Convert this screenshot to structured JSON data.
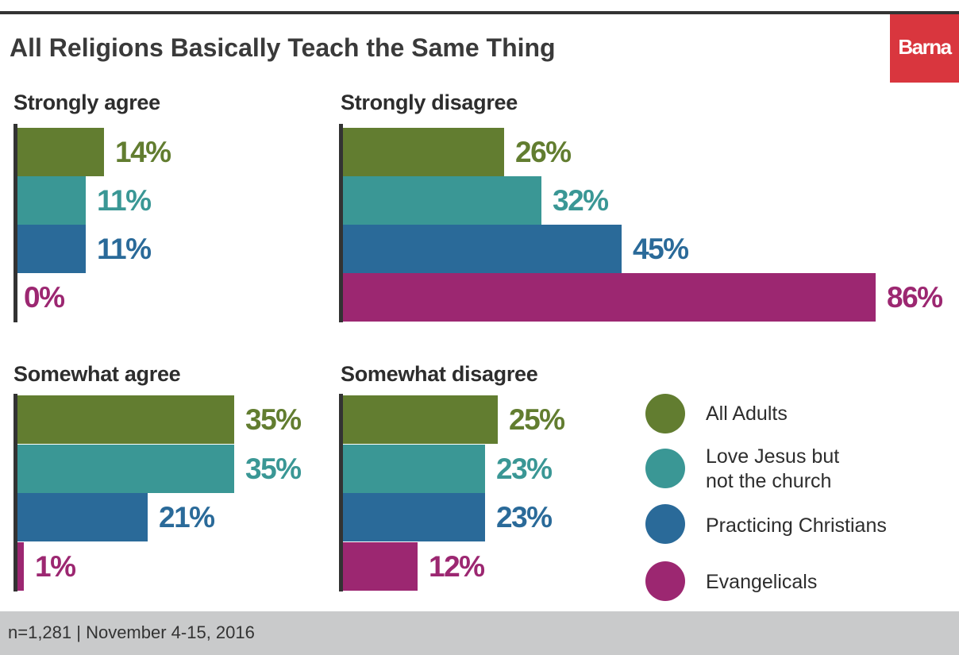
{
  "title": "All Religions Basically Teach the Same Thing",
  "logo": "Barna",
  "footer": "n=1,281  |  November 4-15, 2016",
  "colors": {
    "all_adults": "#627d30",
    "love_jesus": "#3a9795",
    "practicing": "#2a6a99",
    "evangelicals": "#9c2771",
    "logo_bg": "#d9363e",
    "axis": "#333333",
    "footer_bg": "#c9cacb"
  },
  "legend": [
    {
      "label": "All Adults"
    },
    {
      "label": "Love Jesus but\nnot the church"
    },
    {
      "label": "Practicing Christians"
    },
    {
      "label": "Evangelicals"
    }
  ],
  "chart_data": [
    {
      "type": "bar",
      "orientation": "horizontal",
      "title": "Strongly agree",
      "categories": [
        "All Adults",
        "Love Jesus but not the church",
        "Practicing Christians",
        "Evangelicals"
      ],
      "values": [
        14,
        11,
        11,
        0
      ],
      "labels": [
        "14%",
        "11%",
        "11%",
        "0%"
      ],
      "unit": "%"
    },
    {
      "type": "bar",
      "orientation": "horizontal",
      "title": "Strongly disagree",
      "categories": [
        "All Adults",
        "Love Jesus but not the church",
        "Practicing Christians",
        "Evangelicals"
      ],
      "values": [
        26,
        32,
        45,
        86
      ],
      "labels": [
        "26%",
        "32%",
        "45%",
        "86%"
      ],
      "unit": "%"
    },
    {
      "type": "bar",
      "orientation": "horizontal",
      "title": "Somewhat agree",
      "categories": [
        "All Adults",
        "Love Jesus but not the church",
        "Practicing Christians",
        "Evangelicals"
      ],
      "values": [
        35,
        35,
        21,
        1
      ],
      "labels": [
        "35%",
        "35%",
        "21%",
        "1%"
      ],
      "unit": "%"
    },
    {
      "type": "bar",
      "orientation": "horizontal",
      "title": "Somewhat disagree",
      "categories": [
        "All Adults",
        "Love Jesus but not the church",
        "Practicing Christians",
        "Evangelicals"
      ],
      "values": [
        25,
        23,
        23,
        12
      ],
      "labels": [
        "25%",
        "23%",
        "23%",
        "12%"
      ],
      "unit": "%"
    }
  ]
}
